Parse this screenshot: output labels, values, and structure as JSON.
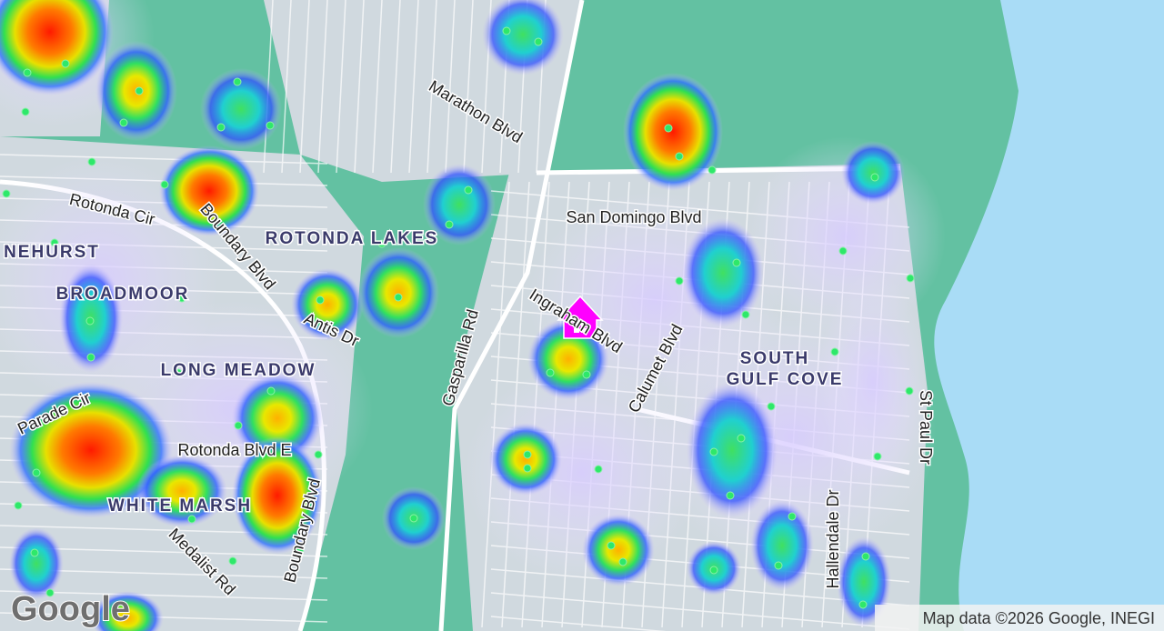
{
  "map": {
    "labels": [
      "Marathon Blvd",
      "San Domingo Blvd",
      "Rotonda Cir",
      "Boundary Blvd",
      "ROTONDA LAKES",
      "NEHURST",
      "BROADMOOR",
      "Antis Dr",
      "Ingraham Blvd",
      "Gasparilla Rd",
      "Calumet Blvd",
      "LONG MEADOW",
      "SOUTH",
      "GULF COVE",
      "Parade Cir",
      "Rotonda Blvd E",
      "WHITE MARSH",
      "Boundary Blvd",
      "Medalist Rd",
      "Hallendale Dr",
      "St Paul Dr"
    ],
    "attribution": "Map data ©2026 Google, INEGI",
    "logo": "Google"
  }
}
